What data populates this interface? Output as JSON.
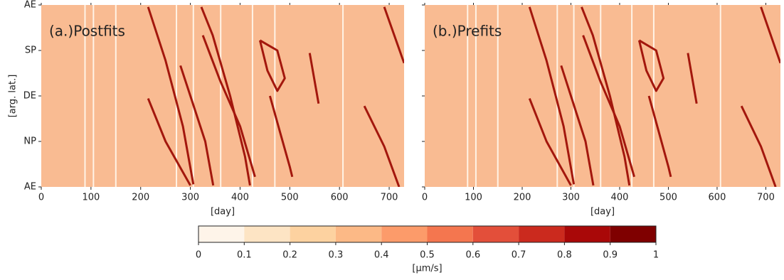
{
  "chart_data": [
    {
      "type": "heatmap",
      "title": "(a.)Postfits",
      "xlabel": "[day]",
      "ylabel": "[arg. lat.]",
      "xlim": [
        0,
        730
      ],
      "xticks": [
        0,
        100,
        200,
        300,
        400,
        500,
        600,
        700
      ],
      "ylim": [
        0,
        360
      ],
      "yticks": [
        {
          "value": 0,
          "label": "AE"
        },
        {
          "value": 90,
          "label": "NP"
        },
        {
          "value": 180,
          "label": "DE"
        },
        {
          "value": 270,
          "label": "SP"
        },
        {
          "value": 360,
          "label": "AE"
        }
      ],
      "show_yticklabels": true,
      "background": "#f9bb92",
      "gap_color": "#fff3e6",
      "gaps": [
        88,
        105,
        150,
        272,
        306,
        361,
        425,
        470,
        607
      ],
      "series": [
        {
          "color": "#a3170d",
          "x": [
            215,
            250,
            285,
            306
          ],
          "values": [
            356,
            250,
            120,
            5
          ]
        },
        {
          "color": "#a3170d",
          "x": [
            215,
            250,
            300
          ],
          "values": [
            175,
            90,
            3
          ]
        },
        {
          "color": "#a3170d",
          "x": [
            322,
            345,
            380,
            410,
            420
          ],
          "values": [
            356,
            300,
            180,
            60,
            3
          ]
        },
        {
          "color": "#a3170d",
          "x": [
            280,
            300,
            330,
            346
          ],
          "values": [
            240,
            180,
            90,
            3
          ]
        },
        {
          "color": "#a3170d",
          "x": [
            325,
            360,
            400,
            430
          ],
          "values": [
            300,
            210,
            120,
            20
          ]
        },
        {
          "color": "#a3170d",
          "x": [
            440,
            455,
            475,
            490,
            475,
            440
          ],
          "values": [
            290,
            230,
            190,
            215,
            270,
            290
          ]
        },
        {
          "color": "#a3170d",
          "x": [
            460,
            480,
            500,
            505
          ],
          "values": [
            180,
            110,
            40,
            20
          ]
        },
        {
          "color": "#a3170d",
          "x": [
            540,
            558
          ],
          "values": [
            265,
            165
          ]
        },
        {
          "color": "#a3170d",
          "x": [
            690,
            730
          ],
          "values": [
            356,
            245
          ]
        },
        {
          "color": "#a3170d",
          "x": [
            650,
            690,
            720
          ],
          "values": [
            160,
            80,
            0
          ]
        }
      ]
    },
    {
      "type": "heatmap",
      "title": "(b.)Prefits",
      "xlabel": "[day]",
      "xlim": [
        0,
        730
      ],
      "xticks": [
        0,
        100,
        200,
        300,
        400,
        500,
        600,
        700
      ],
      "ylim": [
        0,
        360
      ],
      "yticks": [
        0,
        90,
        180,
        270,
        360
      ],
      "show_yticklabels": false,
      "background": "#f9bb92",
      "gap_color": "#fff3e6",
      "gaps": [
        88,
        105,
        150,
        272,
        306,
        361,
        425,
        470,
        607
      ],
      "series": [
        {
          "color": "#a3170d",
          "x": [
            215,
            250,
            285,
            306
          ],
          "values": [
            356,
            250,
            120,
            5
          ]
        },
        {
          "color": "#a3170d",
          "x": [
            215,
            250,
            300
          ],
          "values": [
            175,
            90,
            3
          ]
        },
        {
          "color": "#a3170d",
          "x": [
            322,
            345,
            380,
            410,
            420
          ],
          "values": [
            356,
            300,
            180,
            60,
            3
          ]
        },
        {
          "color": "#a3170d",
          "x": [
            280,
            300,
            330,
            346
          ],
          "values": [
            240,
            180,
            90,
            3
          ]
        },
        {
          "color": "#a3170d",
          "x": [
            325,
            360,
            400,
            430
          ],
          "values": [
            300,
            210,
            120,
            20
          ]
        },
        {
          "color": "#a3170d",
          "x": [
            440,
            455,
            475,
            490,
            475,
            440
          ],
          "values": [
            290,
            230,
            190,
            215,
            270,
            290
          ]
        },
        {
          "color": "#a3170d",
          "x": [
            460,
            480,
            500,
            505
          ],
          "values": [
            180,
            110,
            40,
            20
          ]
        },
        {
          "color": "#a3170d",
          "x": [
            540,
            558
          ],
          "values": [
            265,
            165
          ]
        },
        {
          "color": "#a3170d",
          "x": [
            690,
            730
          ],
          "values": [
            356,
            245
          ]
        },
        {
          "color": "#a3170d",
          "x": [
            650,
            690,
            720
          ],
          "values": [
            160,
            80,
            0
          ]
        }
      ]
    }
  ],
  "colorbar": {
    "label": "[μm/s]",
    "lim": [
      0,
      1
    ],
    "ticks": [
      0,
      0.1,
      0.2,
      0.3,
      0.4,
      0.5,
      0.6,
      0.7,
      0.8,
      0.9,
      1
    ],
    "colors": [
      "#fef4e9",
      "#fde4c4",
      "#fdd2a0",
      "#fcb986",
      "#fc9b6a",
      "#f4764f",
      "#e34f3a",
      "#cb2a1e",
      "#a90808",
      "#7f0000"
    ]
  }
}
